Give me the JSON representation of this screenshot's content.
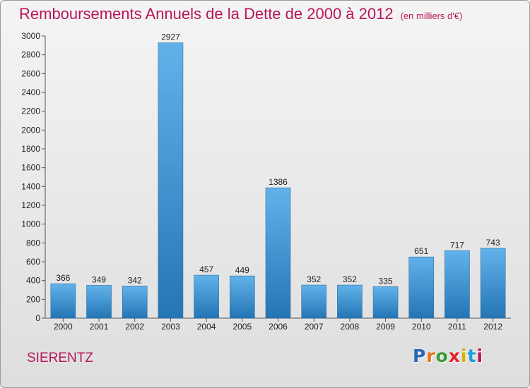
{
  "header": {
    "title": "Remboursements Annuels de la Dette de 2000 à 2012",
    "unit_note": "(en milliers d'€)"
  },
  "footer": {
    "city": "SIERENTZ",
    "brand": "Proxiti",
    "brand_colors": [
      "#2a64b6",
      "#e8751a",
      "#3a9a3a",
      "#e1262a",
      "#d9b000",
      "#1aa0d8",
      "#b6175c"
    ]
  },
  "colors": {
    "title": "#b6175c",
    "bar_light": "#62b2ea",
    "bar_dark": "#2475b5"
  },
  "chart_data": {
    "type": "bar",
    "title": "Remboursements Annuels de la Dette de 2000 à 2012",
    "subtitle": "(en milliers d'€)",
    "categories": [
      "2000",
      "2001",
      "2002",
      "2003",
      "2004",
      "2005",
      "2006",
      "2007",
      "2008",
      "2009",
      "2010",
      "2011",
      "2012"
    ],
    "values": [
      366,
      349,
      342,
      2927,
      457,
      449,
      1386,
      352,
      352,
      335,
      651,
      717,
      743
    ],
    "ylim": [
      0,
      3000
    ],
    "yticks": [
      0,
      200,
      400,
      600,
      800,
      1000,
      1200,
      1400,
      1600,
      1800,
      2000,
      2200,
      2400,
      2600,
      2800,
      3000
    ],
    "grid": false,
    "legend": "none"
  }
}
